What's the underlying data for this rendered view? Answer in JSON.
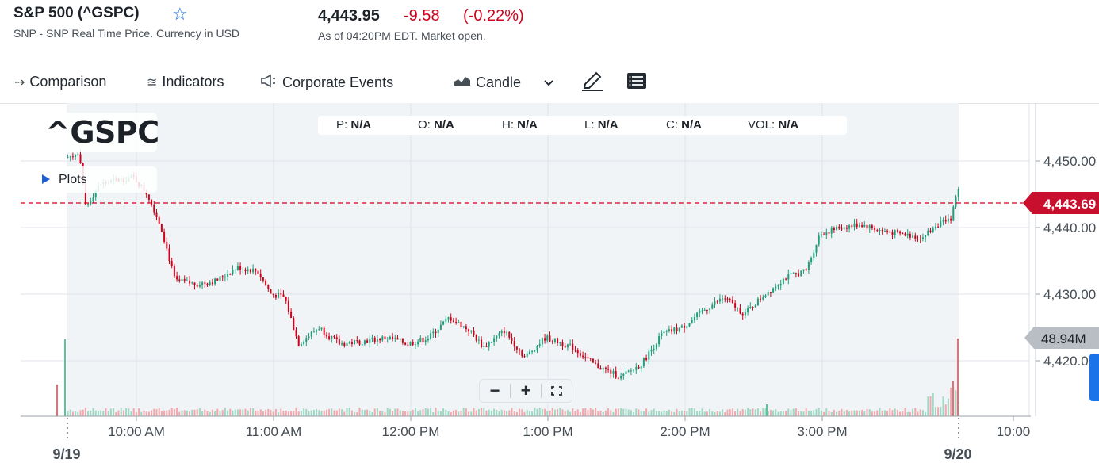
{
  "header": {
    "title": "S&P 500 (^GSPC)",
    "subtitle": "SNP - SNP Real Time Price. Currency in USD",
    "price": "4,443.95",
    "change": "-9.58",
    "change_pct": "(-0.22%)",
    "as_of": "As of 04:20PM EDT. Market open."
  },
  "toolbar": {
    "comparison": "Comparison",
    "indicators": "Indicators",
    "corporate_events": "Corporate Events",
    "chart_type": "Candle"
  },
  "overlay": {
    "symbol": "^GSPC",
    "plots": "Plots",
    "ohlc": [
      {
        "key": "P:",
        "value": "N/A"
      },
      {
        "key": "O:",
        "value": "N/A"
      },
      {
        "key": "H:",
        "value": "N/A"
      },
      {
        "key": "L:",
        "value": "N/A"
      },
      {
        "key": "C:",
        "value": "N/A"
      },
      {
        "key": "VOL:",
        "value": "N/A"
      }
    ]
  },
  "colors": {
    "up": "#1f9e78",
    "down": "#d0021b",
    "price_tag": "#c8102e",
    "volume_tag": "#b9bec4",
    "accent": "#1a73e8"
  },
  "chart_data": {
    "type": "candlestick",
    "y_ticks": [
      "4,450.00",
      "4,440.00",
      "4,430.00",
      "4,420.00"
    ],
    "ylim": [
      4413,
      4460
    ],
    "x_ticks": [
      "10:00 AM",
      "11:00 AM",
      "12:00 PM",
      "1:00 PM",
      "2:00 PM",
      "3:00 PM",
      "10:00"
    ],
    "date_labels": [
      "9/19",
      "9/20"
    ],
    "last_price_label": "4,443.69",
    "last_price": 4443.69,
    "volume_label": "48.94M",
    "price_path": [
      [
        9.5,
        4450.5
      ],
      [
        9.6,
        4451.0
      ],
      [
        9.65,
        4443.0
      ],
      [
        9.75,
        4446.5
      ],
      [
        9.85,
        4447.0
      ],
      [
        10.0,
        4447.5
      ],
      [
        10.1,
        4445.0
      ],
      [
        10.2,
        4440.0
      ],
      [
        10.3,
        4432.0
      ],
      [
        10.45,
        4431.5
      ],
      [
        10.6,
        4432.0
      ],
      [
        10.75,
        4434.0
      ],
      [
        10.9,
        4433.5
      ],
      [
        11.0,
        4430.0
      ],
      [
        11.1,
        4429.5
      ],
      [
        11.2,
        4422.5
      ],
      [
        11.35,
        4425.0
      ],
      [
        11.5,
        4422.5
      ],
      [
        11.7,
        4423.0
      ],
      [
        11.85,
        4423.5
      ],
      [
        12.0,
        4422.5
      ],
      [
        12.15,
        4423.5
      ],
      [
        12.3,
        4426.5
      ],
      [
        12.45,
        4424.5
      ],
      [
        12.55,
        4422.0
      ],
      [
        12.7,
        4424.5
      ],
      [
        12.85,
        4420.5
      ],
      [
        13.0,
        4423.5
      ],
      [
        13.2,
        4422.0
      ],
      [
        13.35,
        4419.5
      ],
      [
        13.45,
        4418.5
      ],
      [
        13.55,
        4417.5
      ],
      [
        13.7,
        4419.5
      ],
      [
        13.85,
        4424.0
      ],
      [
        14.0,
        4425.0
      ],
      [
        14.15,
        4427.5
      ],
      [
        14.3,
        4429.5
      ],
      [
        14.45,
        4427.0
      ],
      [
        14.6,
        4430.0
      ],
      [
        14.75,
        4432.5
      ],
      [
        14.9,
        4433.5
      ],
      [
        15.0,
        4439.0
      ],
      [
        15.15,
        4440.0
      ],
      [
        15.3,
        4440.5
      ],
      [
        15.45,
        4439.5
      ],
      [
        15.6,
        4439.0
      ],
      [
        15.75,
        4438.5
      ],
      [
        15.85,
        4440.5
      ],
      [
        15.95,
        4441.0
      ],
      [
        16.05,
        4448.5
      ],
      [
        16.15,
        4447.0
      ],
      [
        16.25,
        4446.5
      ],
      [
        16.35,
        4444.0
      ],
      [
        16.45,
        4441.5
      ],
      [
        16.55,
        4440.0
      ],
      [
        16.7,
        4437.5
      ],
      [
        16.85,
        4436.5
      ],
      [
        17.0,
        4436.5
      ],
      [
        17.15,
        4437.0
      ],
      [
        17.3,
        4440.5
      ],
      [
        17.45,
        4442.0
      ],
      [
        17.6,
        4442.5
      ],
      [
        17.75,
        4445.0
      ],
      [
        17.85,
        4448.0
      ],
      [
        17.95,
        4447.0
      ],
      [
        18.05,
        4445.5
      ],
      [
        18.15,
        4443.7
      ]
    ]
  }
}
